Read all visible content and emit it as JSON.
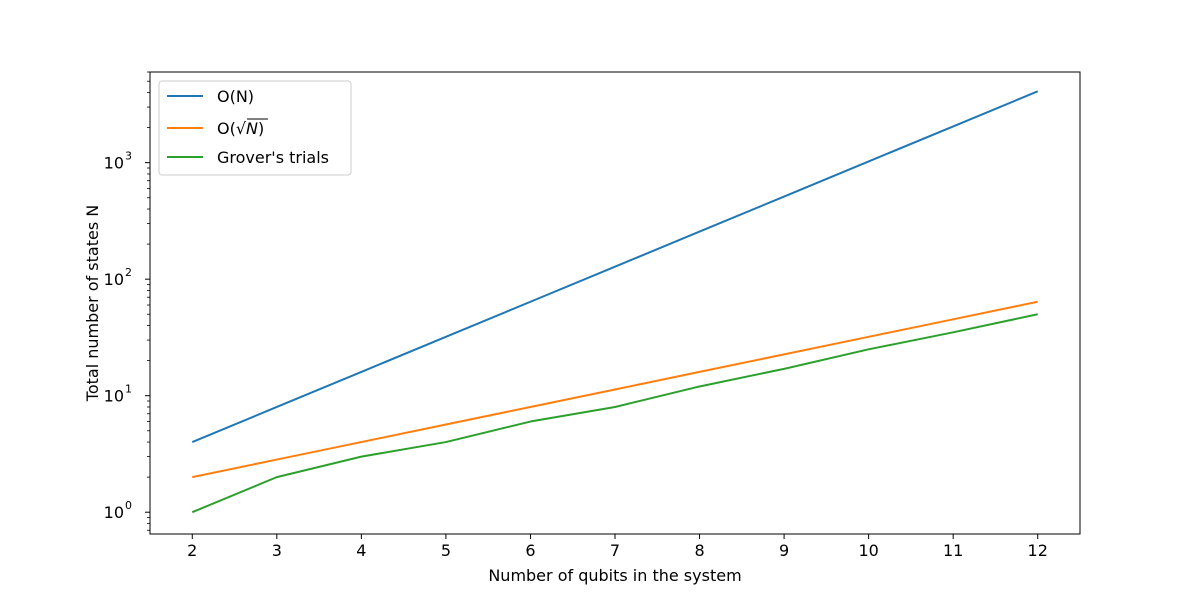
{
  "chart_data": {
    "type": "line",
    "title": "",
    "xlabel": "Number of qubits in the system",
    "ylabel": "Total number of states N",
    "x": [
      2,
      3,
      4,
      5,
      6,
      7,
      8,
      9,
      10,
      11,
      12
    ],
    "x_ticks": [
      "2",
      "3",
      "4",
      "5",
      "6",
      "7",
      "8",
      "9",
      "10",
      "11",
      "12"
    ],
    "xlim": [
      1.5,
      12.5
    ],
    "y_scale": "log",
    "ylim": [
      0.65,
      6000
    ],
    "y_ticks": [
      {
        "value": 1,
        "base": "10",
        "exp": "0"
      },
      {
        "value": 10,
        "base": "10",
        "exp": "1"
      },
      {
        "value": 100,
        "base": "10",
        "exp": "2"
      },
      {
        "value": 1000,
        "base": "10",
        "exp": "3"
      }
    ],
    "grid": false,
    "legend_position": "top-left",
    "series": [
      {
        "name": "O(N)",
        "color": "#1f77b4",
        "values": [
          4,
          8,
          16,
          32,
          64,
          128,
          256,
          512,
          1024,
          2048,
          4096
        ]
      },
      {
        "name_prefix": "O(",
        "name_radical": "√",
        "name_symbol": "N",
        "name_suffix": ")",
        "color": "#ff7f0e",
        "values": [
          2,
          2.83,
          4,
          5.66,
          8,
          11.31,
          16,
          22.63,
          32,
          45.25,
          64
        ]
      },
      {
        "name": "Grover's trials",
        "color": "#2ca02c",
        "values": [
          1,
          2,
          3,
          4,
          6,
          8,
          12,
          17,
          25,
          35,
          50
        ]
      }
    ]
  }
}
